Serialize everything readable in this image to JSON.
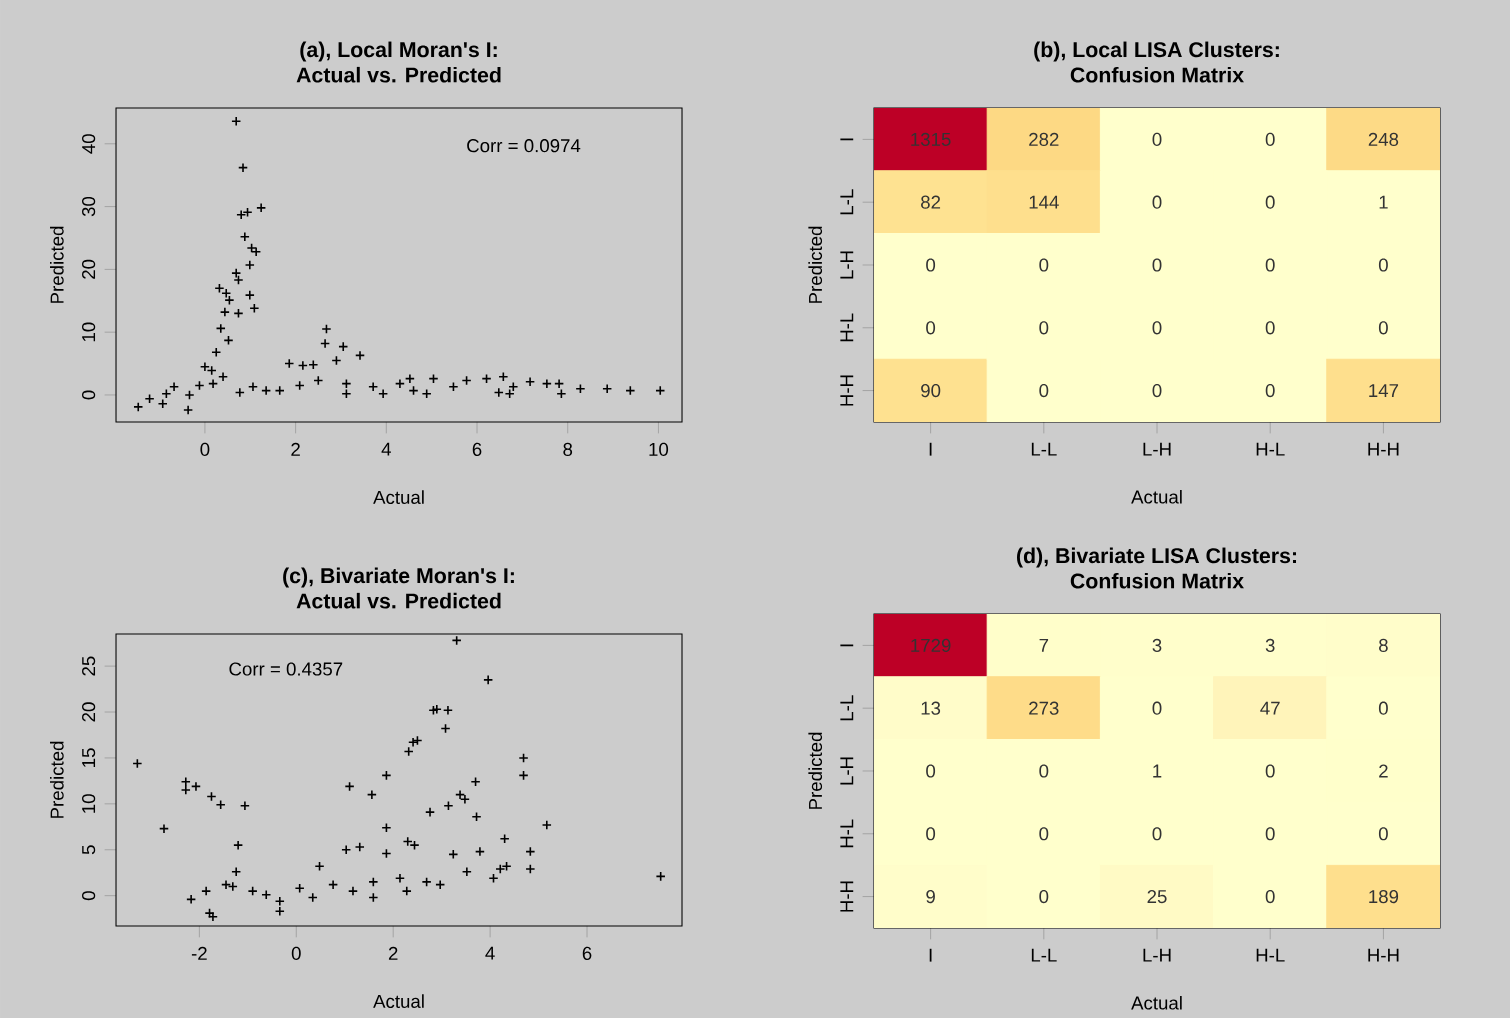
{
  "chart_data": [
    {
      "type": "scatter",
      "title": "(a), Local Moran's I:",
      "subtitle": "Actual vs. Predicted",
      "xlabel": "Actual",
      "ylabel": "Predicted",
      "color": "#000000",
      "marker": "cross",
      "xlim": [
        -1.96,
        10.52
      ],
      "ylim": [
        -4.3,
        45.7
      ],
      "xticks": [
        0,
        2,
        4,
        6,
        8,
        10
      ],
      "yticks": [
        0,
        10,
        20,
        30,
        40
      ],
      "annotations": [
        "Corr = 0.0974"
      ],
      "x": [
        -1.47,
        -1.22,
        -0.93,
        -0.68,
        -0.37,
        0.69,
        0.84,
        0.8,
        0.94,
        1.24,
        0.88,
        1.03,
        1.13,
        0.99,
        0.69,
        0.74,
        0.32,
        0.47,
        0.54,
        0.99,
        1.09,
        0.44,
        0.74,
        0.35,
        0.52,
        0.25,
        0,
        0.15,
        0.4,
        -0.12,
        0.18,
        1.06,
        1.65,
        2.09,
        1.86,
        2.16,
        2.39,
        2.68,
        2.65,
        3.05,
        2.9,
        3.42,
        2.5,
        3.12,
        3.71,
        4.3,
        4.52,
        5.04,
        3.93,
        4.89,
        5.48,
        5.77,
        6.21,
        6.58,
        6.8,
        7.17,
        7.54,
        7.81,
        7.86,
        8.28,
        8.87,
        9.38,
        10.04,
        0.77,
        1.35,
        -0.85,
        -0.34,
        3.12,
        4.6,
        6.48,
        6.72
      ],
      "values": [
        -1.9,
        -0.6,
        -1.4,
        1.3,
        -2.4,
        43.6,
        36.2,
        28.7,
        29.1,
        29.8,
        25.2,
        23.4,
        22.8,
        20.7,
        19.4,
        18.3,
        17.0,
        16.2,
        15.1,
        15.9,
        13.8,
        13.2,
        13.0,
        10.6,
        8.7,
        6.8,
        4.5,
        3.9,
        2.9,
        1.5,
        1.8,
        1.3,
        0.7,
        1.5,
        5.0,
        4.7,
        4.8,
        10.5,
        8.2,
        7.7,
        5.5,
        6.3,
        2.3,
        1.8,
        1.3,
        1.8,
        2.6,
        2.6,
        0.2,
        0.2,
        1.3,
        2.3,
        2.6,
        2.9,
        1.3,
        2.1,
        1.8,
        1.8,
        0.2,
        1.0,
        1.0,
        0.7,
        0.7,
        0.4,
        0.7,
        0.2,
        0,
        0.2,
        0.7,
        0.4,
        0.2
      ]
    },
    {
      "type": "heatmap",
      "title": "(b), Local LISA Clusters:",
      "subtitle": "Confusion Matrix",
      "xlabel": "Actual",
      "ylabel": "Predicted",
      "categories": [
        "I",
        "L-L",
        "L-H",
        "H-L",
        "H-H"
      ],
      "y_categories": [
        "I",
        "L-L",
        "L-H",
        "H-L",
        "H-H"
      ],
      "data_labels": true,
      "cells": [
        [
          1315,
          282,
          0,
          0,
          248
        ],
        [
          82,
          144,
          0,
          0,
          1
        ],
        [
          0,
          0,
          0,
          0,
          0
        ],
        [
          0,
          0,
          0,
          0,
          0
        ],
        [
          90,
          0,
          0,
          0,
          147
        ]
      ]
    },
    {
      "type": "scatter",
      "title": "(c), Bivariate Moran's I:",
      "subtitle": "Actual vs. Predicted",
      "xlabel": "Actual",
      "ylabel": "Predicted",
      "color": "#000000",
      "marker": "cross",
      "xlim": [
        -3.72,
        7.96
      ],
      "ylim": [
        -3.3,
        28.5
      ],
      "xticks": [
        -2,
        0,
        2,
        4,
        6
      ],
      "yticks": [
        0,
        5,
        10,
        15,
        20,
        25
      ],
      "annotations": [
        "Corr = 0.4357"
      ],
      "x": [
        -3.28,
        -2.73,
        -2.28,
        -2.28,
        -2.07,
        -1.75,
        -1.56,
        -1.06,
        -1.2,
        -2.17,
        -1.79,
        -1.72,
        -1.86,
        -1.24,
        -1.45,
        -0.34,
        3.31,
        3.96,
        2.83,
        3.13,
        2.9,
        3.08,
        2.41,
        2.32,
        2.5,
        1.1,
        1.56,
        1.86,
        3.7,
        3.38,
        3.48,
        3.14,
        2.76,
        3.72,
        4.69,
        4.69,
        5.17,
        1.86,
        4.3,
        2.3,
        2.44,
        1.86,
        4.83,
        3.79,
        7.52,
        4.34,
        3.24,
        1.03,
        1.31,
        0.48,
        0.07,
        -0.62,
        0.76,
        1.59,
        2.14,
        2.69,
        3.52,
        4.21,
        4.83,
        4.07,
        2.97,
        2.28,
        -0.34,
        -0.9,
        0.34,
        1.17,
        1.59,
        -1.31
      ],
      "values": [
        14.4,
        7.3,
        12.4,
        11.5,
        11.9,
        10.8,
        9.9,
        9.8,
        5.5,
        -0.4,
        -1.9,
        -2.3,
        0.5,
        2.6,
        1.2,
        -1.7,
        27.8,
        23.5,
        20.2,
        20.2,
        20.3,
        18.2,
        16.7,
        15.7,
        16.9,
        11.9,
        11.0,
        13.1,
        12.4,
        11.0,
        10.5,
        9.8,
        9.1,
        8.6,
        15.0,
        13.1,
        7.7,
        7.4,
        6.2,
        5.9,
        5.5,
        4.6,
        4.8,
        4.8,
        2.1,
        3.2,
        4.5,
        5.0,
        5.3,
        3.2,
        0.8,
        0.1,
        1.2,
        1.5,
        1.9,
        1.5,
        2.6,
        2.9,
        2.9,
        1.9,
        1.2,
        0.5,
        -0.6,
        0.5,
        -0.2,
        0.5,
        -0.2,
        1.0
      ]
    },
    {
      "type": "heatmap",
      "title": "(d), Bivariate LISA Clusters:",
      "subtitle": "Confusion Matrix",
      "xlabel": "Actual",
      "ylabel": "Predicted",
      "categories": [
        "I",
        "L-L",
        "L-H",
        "H-L",
        "H-H"
      ],
      "y_categories": [
        "I",
        "L-L",
        "L-H",
        "H-L",
        "H-H"
      ],
      "data_labels": true,
      "cells": [
        [
          1729,
          7,
          3,
          3,
          8
        ],
        [
          13,
          273,
          0,
          47,
          0
        ],
        [
          0,
          0,
          1,
          0,
          2
        ],
        [
          0,
          0,
          0,
          0,
          0
        ],
        [
          9,
          0,
          25,
          0,
          189
        ]
      ]
    }
  ]
}
